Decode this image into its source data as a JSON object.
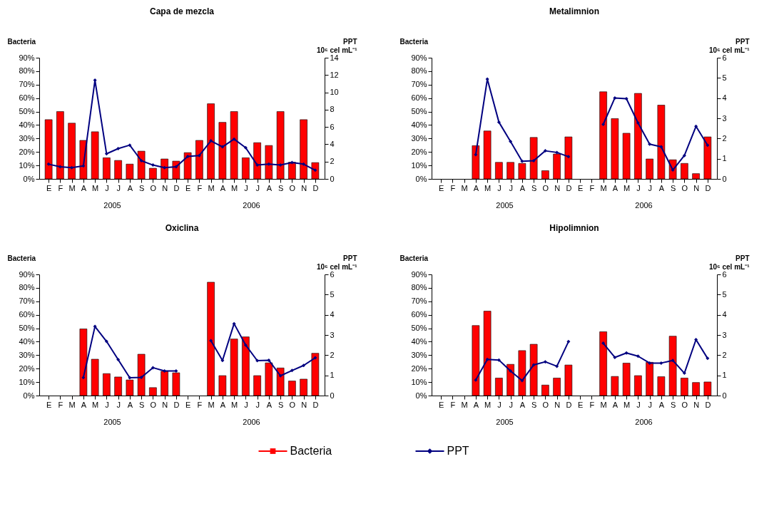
{
  "chart_data": [
    {
      "type": "bar",
      "title": "Capa de mezcla",
      "legend": "bottom",
      "ylabel": "Bacteria",
      "y2label": "PPT 10⁶ cel mL⁻¹",
      "categories": [
        "E",
        "F",
        "M",
        "A",
        "M",
        "J",
        "J",
        "A",
        "S",
        "O",
        "N",
        "D",
        "E",
        "F",
        "M",
        "A",
        "M",
        "J",
        "J",
        "A",
        "S",
        "O",
        "N",
        "D"
      ],
      "annotations": [
        "2005",
        "2006"
      ],
      "ylim": [
        0,
        90
      ],
      "yticks": [
        {
          "value": 0,
          "label": "0%"
        },
        {
          "value": 10,
          "label": "10%"
        },
        {
          "value": 20,
          "label": "20%"
        },
        {
          "value": 30,
          "label": "30%"
        },
        {
          "value": 40,
          "label": "40%"
        },
        {
          "value": 50,
          "label": "50%"
        },
        {
          "value": 60,
          "label": "60%"
        },
        {
          "value": 70,
          "label": "70%"
        },
        {
          "value": 80,
          "label": "80%"
        },
        {
          "value": 90,
          "label": "90%"
        }
      ],
      "y2lim": [
        0,
        14
      ],
      "y2ticks": [
        0,
        2,
        4,
        6,
        8,
        10,
        12,
        14
      ],
      "series": [
        {
          "name": "Bacteria",
          "color": "#ff0000",
          "values": [
            44,
            50,
            41.4,
            28.6,
            35,
            15.7,
            13.7,
            11,
            20.6,
            7.9,
            14.8,
            13.2,
            19.5,
            28.6,
            55.8,
            42,
            50,
            15.7,
            26.9,
            24.8,
            50,
            12.4,
            44,
            12.1
          ]
        },
        {
          "name": "PPT",
          "type": "line",
          "color": "#000080",
          "axis": "y2",
          "marker": "diamond",
          "values": [
            1.7,
            1.4,
            1.3,
            1.5,
            11.4,
            2.9,
            3.5,
            3.9,
            2.1,
            1.6,
            1.3,
            1.4,
            2.6,
            2.7,
            4.4,
            3.7,
            4.6,
            3.6,
            1.6,
            1.7,
            1.6,
            1.9,
            1.7,
            1.0
          ]
        }
      ]
    },
    {
      "type": "bar",
      "title": "Metalimnion",
      "ylabel": "Bacteria",
      "y2label": "PPT 10⁶ cel mL⁻¹",
      "categories": [
        "E",
        "F",
        "M",
        "A",
        "M",
        "J",
        "J",
        "A",
        "S",
        "O",
        "N",
        "D",
        "E",
        "F",
        "M",
        "A",
        "M",
        "J",
        "J",
        "A",
        "S",
        "O",
        "N",
        "D"
      ],
      "annotations": [
        "2005",
        "2006"
      ],
      "ylim": [
        0,
        90
      ],
      "yticks": [
        {
          "value": 0,
          "label": "0%"
        },
        {
          "value": 10,
          "label": "10%"
        },
        {
          "value": 20,
          "label": "20%"
        },
        {
          "value": 30,
          "label": "30%"
        },
        {
          "value": 40,
          "label": "40%"
        },
        {
          "value": 50,
          "label": "50%"
        },
        {
          "value": 60,
          "label": "60%"
        },
        {
          "value": 70,
          "label": "70%"
        },
        {
          "value": 80,
          "label": "80%"
        },
        {
          "value": 90,
          "label": "90%"
        }
      ],
      "y2lim": [
        0,
        6
      ],
      "y2ticks": [
        0,
        1,
        2,
        3,
        4,
        5,
        6
      ],
      "series": [
        {
          "color": "#ff0000",
          "values": [
            null,
            null,
            null,
            24.7,
            35.6,
            12.3,
            12.3,
            11.5,
            30.8,
            6.1,
            18.5,
            31.2,
            null,
            null,
            64.7,
            44.8,
            33.9,
            63.5,
            14.8,
            54.8,
            14.2,
            11.5,
            3.9,
            31.2
          ]
        },
        {
          "type": "line",
          "color": "#000080",
          "axis": "y2",
          "marker": "diamond",
          "values": [
            null,
            null,
            null,
            1.2,
            4.94,
            2.81,
            1.85,
            0.87,
            0.9,
            1.39,
            1.31,
            1.1,
            null,
            null,
            2.7,
            4.01,
            3.97,
            2.77,
            1.72,
            1.59,
            0.44,
            1.16,
            2.6,
            1.67
          ]
        }
      ]
    },
    {
      "type": "bar",
      "title": "Oxiclina",
      "ylabel": "Bacteria",
      "y2label": "PPT 10⁶ cel mL⁻¹",
      "categories": [
        "E",
        "F",
        "M",
        "A",
        "M",
        "J",
        "J",
        "A",
        "S",
        "O",
        "N",
        "D",
        "E",
        "F",
        "M",
        "A",
        "M",
        "J",
        "J",
        "A",
        "S",
        "O",
        "N",
        "D"
      ],
      "annotations": [
        "2005",
        "2006"
      ],
      "ylim": [
        0,
        90
      ],
      "yticks": [
        {
          "value": 0,
          "label": "0%"
        },
        {
          "value": 10,
          "label": "10%"
        },
        {
          "value": 20,
          "label": "20%"
        },
        {
          "value": 30,
          "label": "30%"
        },
        {
          "value": 40,
          "label": "40%"
        },
        {
          "value": 50,
          "label": "50%"
        },
        {
          "value": 60,
          "label": "60%"
        },
        {
          "value": 70,
          "label": "70%"
        },
        {
          "value": 80,
          "label": "80%"
        },
        {
          "value": 90,
          "label": "90%"
        }
      ],
      "y2lim": [
        0,
        6
      ],
      "y2ticks": [
        0,
        1,
        2,
        3,
        4,
        5,
        6
      ],
      "series": [
        {
          "color": "#ff0000",
          "values": [
            null,
            null,
            null,
            49.5,
            27,
            16.3,
            13.8,
            11.6,
            30.7,
            5.9,
            18,
            16.9,
            null,
            null,
            84.2,
            14.8,
            42,
            43.6,
            14.8,
            24.3,
            20.5,
            10.8,
            12.2,
            31.4
          ]
        },
        {
          "type": "line",
          "color": "#000080",
          "axis": "y2",
          "marker": "diamond",
          "values": [
            null,
            null,
            null,
            0.89,
            3.42,
            2.68,
            1.78,
            0.88,
            0.9,
            1.38,
            1.22,
            1.22,
            null,
            null,
            2.72,
            1.74,
            3.56,
            2.5,
            1.73,
            1.75,
            0.98,
            1.24,
            1.49,
            1.87
          ]
        }
      ]
    },
    {
      "type": "bar",
      "title": "Hipolimnion",
      "ylabel": "Bacteria",
      "y2label": "PPT 10⁶ cel mL⁻¹",
      "categories": [
        "E",
        "F",
        "M",
        "A",
        "M",
        "J",
        "J",
        "A",
        "S",
        "O",
        "N",
        "D",
        "E",
        "F",
        "M",
        "A",
        "M",
        "J",
        "J",
        "A",
        "S",
        "O",
        "N",
        "D"
      ],
      "annotations": [
        "2005",
        "2006"
      ],
      "ylim": [
        0,
        90
      ],
      "yticks": [
        {
          "value": 0,
          "label": "0%"
        },
        {
          "value": 10,
          "label": "10%"
        },
        {
          "value": 20,
          "label": "20%"
        },
        {
          "value": 30,
          "label": "30%"
        },
        {
          "value": 40,
          "label": "40%"
        },
        {
          "value": 50,
          "label": "50%"
        },
        {
          "value": 60,
          "label": "60%"
        },
        {
          "value": 70,
          "label": "70%"
        },
        {
          "value": 80,
          "label": "80%"
        },
        {
          "value": 90,
          "label": "90%"
        }
      ],
      "y2lim": [
        0,
        6
      ],
      "y2ticks": [
        0,
        1,
        2,
        3,
        4,
        5,
        6
      ],
      "series": [
        {
          "color": "#ff0000",
          "values": [
            null,
            null,
            null,
            52,
            62.7,
            13,
            23.2,
            33.4,
            38.1,
            7.8,
            13,
            22.7,
            null,
            null,
            47.4,
            14.2,
            24.1,
            14.8,
            24.7,
            14,
            44.1,
            13,
            9.7,
            10.1
          ]
        },
        {
          "type": "line",
          "color": "#000080",
          "axis": "y2",
          "marker": "diamond",
          "values": [
            null,
            null,
            null,
            0.77,
            1.79,
            1.76,
            1.22,
            0.74,
            1.52,
            1.67,
            1.45,
            2.67,
            null,
            null,
            2.59,
            1.89,
            2.11,
            1.95,
            1.61,
            1.61,
            1.74,
            1.11,
            2.77,
            1.84
          ]
        }
      ]
    }
  ]
}
